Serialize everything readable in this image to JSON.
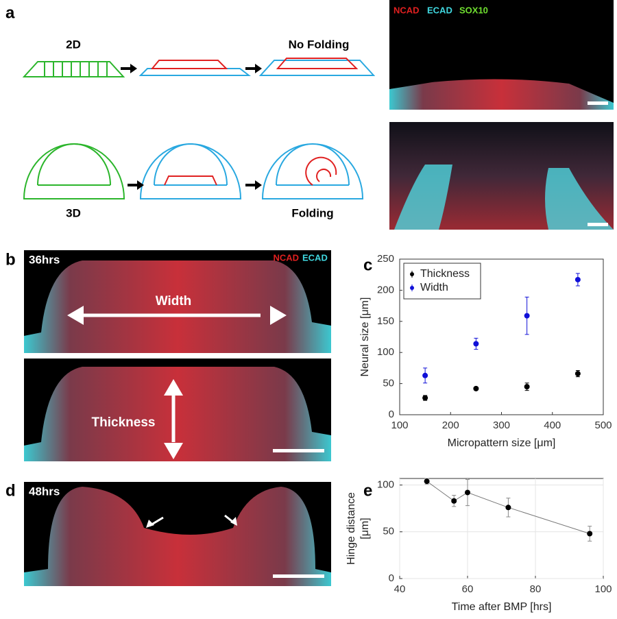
{
  "figure": {
    "panel_labels": [
      "a",
      "b",
      "c",
      "d",
      "e"
    ],
    "diagram_labels": [
      "2D",
      "No Folding",
      "3D",
      "Folding"
    ],
    "stain_labels_a": [
      "NCAD",
      "ECAD",
      "SOX10"
    ],
    "stain_labels_b": [
      "NCAD",
      "ECAD"
    ],
    "times": [
      "36hrs",
      "48hrs"
    ],
    "measures": [
      "Width",
      "Thickness"
    ]
  },
  "chart_data": [
    {
      "type": "scatter",
      "xlabel": "Micropattern size [μm]",
      "ylabel": "Neural size [μm]",
      "x": [
        150,
        250,
        350,
        450
      ],
      "series": [
        {
          "name": "Thickness",
          "color": "#000000",
          "values": [
            27,
            42,
            45,
            66
          ],
          "errors": [
            4,
            2,
            6,
            5
          ]
        },
        {
          "name": "Width",
          "color": "#1010d8",
          "values": [
            63,
            114,
            159,
            217
          ],
          "errors": [
            12,
            9,
            30,
            10
          ]
        }
      ],
      "xlim": [
        100,
        500
      ],
      "xticks": [
        100,
        200,
        300,
        400,
        500
      ],
      "ylim": [
        0,
        250
      ],
      "yticks": [
        0,
        50,
        100,
        150,
        200,
        250
      ],
      "grid": false,
      "legend": "upper-left"
    },
    {
      "type": "line",
      "xlabel": "Time after BMP [hrs]",
      "ylabel": [
        "Hinge distance",
        "[μm]"
      ],
      "x": [
        48,
        56,
        60,
        72,
        96
      ],
      "series": [
        {
          "name": null,
          "color": "#000000",
          "values": [
            104,
            83,
            92,
            76,
            48
          ],
          "errors": [
            3,
            6,
            14,
            10,
            8
          ]
        }
      ],
      "xlim": [
        40,
        100
      ],
      "xticks": [
        40,
        60,
        80,
        100
      ],
      "ylim": [
        0,
        107
      ],
      "yticks": [
        0,
        50,
        100
      ],
      "grid": true
    }
  ]
}
